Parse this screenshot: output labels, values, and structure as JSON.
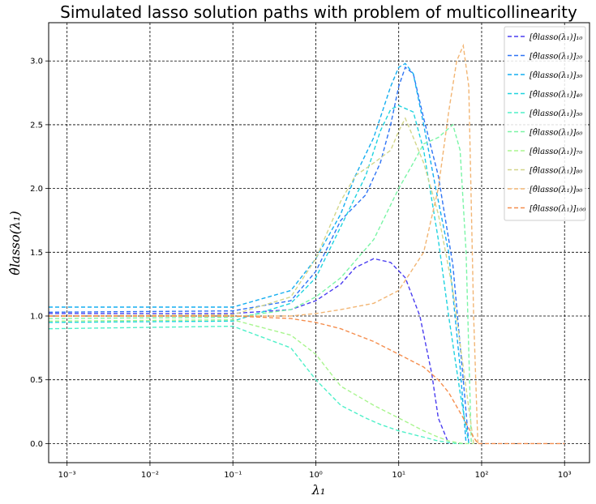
{
  "chart_data": {
    "type": "line",
    "title": "Simulated lasso solution paths with problem of multicollinearity",
    "xlabel": "λ₁",
    "ylabel": "θ̂lasso(λ₁)",
    "xscale": "log",
    "xlim": [
      0.0006,
      2000
    ],
    "ylim": [
      -0.15,
      3.3
    ],
    "xticks": [
      {
        "value": 0.001,
        "label": "10⁻³"
      },
      {
        "value": 0.01,
        "label": "10⁻²"
      },
      {
        "value": 0.1,
        "label": "10⁻¹"
      },
      {
        "value": 1,
        "label": "10⁰"
      },
      {
        "value": 10,
        "label": "10¹"
      },
      {
        "value": 100,
        "label": "10²"
      },
      {
        "value": 1000,
        "label": "10³"
      }
    ],
    "yticks": [
      {
        "value": 0.0,
        "label": "0.0"
      },
      {
        "value": 0.5,
        "label": "0.5"
      },
      {
        "value": 1.0,
        "label": "1.0"
      },
      {
        "value": 1.5,
        "label": "1.5"
      },
      {
        "value": 2.0,
        "label": "2.0"
      },
      {
        "value": 2.5,
        "label": "2.5"
      },
      {
        "value": 3.0,
        "label": "3.0"
      }
    ],
    "grid": true,
    "legend_position": "top-right",
    "line_style": "dashed",
    "series": [
      {
        "name": "[θ̂lasso(λ₁)]₁₀",
        "color": "#4a3df0",
        "x": [
          0.0006,
          0.1,
          0.5,
          1,
          2,
          3,
          5,
          8,
          12,
          18,
          25,
          30,
          40
        ],
        "y": [
          1.02,
          1.02,
          1.05,
          1.12,
          1.25,
          1.38,
          1.45,
          1.42,
          1.3,
          1.0,
          0.55,
          0.2,
          0.0
        ]
      },
      {
        "name": "[θ̂lasso(λ₁)]₂₀",
        "color": "#2f74f5",
        "x": [
          0.0006,
          0.1,
          0.5,
          1,
          2,
          4,
          6,
          8,
          10,
          12,
          15,
          20,
          30,
          45,
          60,
          70
        ],
        "y": [
          1.03,
          1.04,
          1.12,
          1.35,
          1.75,
          1.95,
          2.2,
          2.5,
          2.8,
          2.95,
          2.9,
          2.55,
          2.1,
          1.4,
          0.5,
          0.0
        ]
      },
      {
        "name": "[θ̂lasso(λ₁)]₃₀",
        "color": "#14aef0",
        "x": [
          0.0006,
          0.1,
          0.5,
          1,
          2,
          3,
          5,
          8,
          10,
          12,
          15,
          20,
          28,
          40,
          55,
          65
        ],
        "y": [
          1.07,
          1.07,
          1.2,
          1.45,
          1.8,
          2.1,
          2.4,
          2.8,
          2.95,
          2.98,
          2.9,
          2.5,
          2.0,
          1.5,
          0.6,
          0.0
        ]
      },
      {
        "name": "[θ̂lasso(λ₁)]₄₀",
        "color": "#1fd3df",
        "x": [
          0.0006,
          0.1,
          0.5,
          1,
          2,
          4,
          6,
          8,
          10,
          15,
          20,
          30,
          40,
          55,
          70
        ],
        "y": [
          0.95,
          0.96,
          1.1,
          1.3,
          1.7,
          2.1,
          2.45,
          2.62,
          2.65,
          2.6,
          2.3,
          1.6,
          1.0,
          0.4,
          0.0
        ]
      },
      {
        "name": "[θ̂lasso(λ₁)]₅₀",
        "color": "#4ff0c9",
        "x": [
          0.0006,
          0.1,
          0.5,
          1,
          2,
          4,
          6,
          10,
          20,
          30,
          50,
          60
        ],
        "y": [
          0.9,
          0.92,
          0.75,
          0.5,
          0.3,
          0.2,
          0.15,
          0.1,
          0.05,
          0.02,
          0.0,
          0.0
        ]
      },
      {
        "name": "[θ̂lasso(λ₁)]₆₀",
        "color": "#7af5a6",
        "x": [
          0.0006,
          0.1,
          0.5,
          1,
          2,
          5,
          10,
          15,
          20,
          30,
          45,
          55,
          65,
          75
        ],
        "y": [
          0.98,
          0.99,
          1.05,
          1.15,
          1.3,
          1.6,
          2.0,
          2.2,
          2.35,
          2.4,
          2.5,
          2.3,
          1.5,
          0.0
        ]
      },
      {
        "name": "[θ̂lasso(λ₁)]₇₀",
        "color": "#a8f58e",
        "x": [
          0.0006,
          0.1,
          0.5,
          1,
          2,
          5,
          10,
          20,
          30,
          40,
          60,
          80
        ],
        "y": [
          0.96,
          0.97,
          0.85,
          0.7,
          0.45,
          0.3,
          0.2,
          0.1,
          0.05,
          0.02,
          0.0,
          0.0
        ]
      },
      {
        "name": "[θ̂lasso(λ₁)]₈₀",
        "color": "#d3d68a",
        "x": [
          0.0006,
          0.1,
          0.5,
          1,
          2,
          3,
          5,
          8,
          10,
          12,
          15,
          20,
          30,
          45,
          60,
          80
        ],
        "y": [
          1.0,
          1.01,
          1.15,
          1.45,
          1.9,
          2.1,
          2.2,
          2.3,
          2.45,
          2.55,
          2.4,
          2.2,
          1.8,
          1.2,
          0.6,
          0.0
        ]
      },
      {
        "name": "[θ̂lasso(λ₁)]₉₀",
        "color": "#f2b573",
        "x": [
          0.0006,
          0.1,
          0.5,
          1,
          2,
          5,
          10,
          20,
          30,
          40,
          50,
          60,
          70,
          80,
          90
        ],
        "y": [
          1.0,
          1.0,
          1.0,
          1.02,
          1.05,
          1.1,
          1.2,
          1.5,
          2.0,
          2.6,
          3.0,
          3.12,
          2.8,
          1.0,
          0.0
        ]
      },
      {
        "name": "[θ̂lasso(λ₁)]₁₀₀",
        "color": "#f58e4e",
        "x": [
          0.0006,
          0.1,
          0.5,
          1,
          2,
          5,
          10,
          20,
          30,
          40,
          60,
          80,
          90,
          100,
          1000
        ],
        "y": [
          1.0,
          1.0,
          0.98,
          0.95,
          0.9,
          0.8,
          0.7,
          0.6,
          0.5,
          0.4,
          0.2,
          0.05,
          0.0,
          0.0,
          0.0
        ]
      }
    ]
  }
}
